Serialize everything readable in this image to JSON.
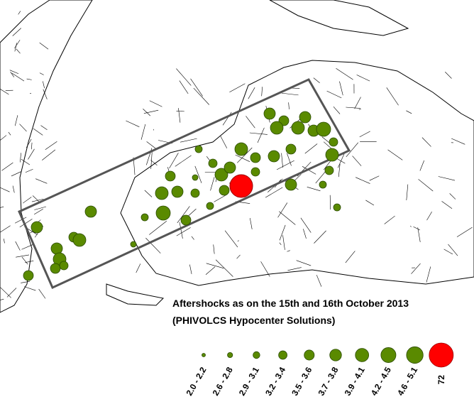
{
  "title": [
    "Aftershocks as on the 15th and 16th October 2013",
    "(PHIVOLCS Hypocenter Solutions)"
  ],
  "legend": {
    "items": [
      {
        "label": "2.0 - 2.2"
      },
      {
        "label": "2.6 - 2.8"
      },
      {
        "label": "2.9 - 3.1"
      },
      {
        "label": "3.2 - 3.4"
      },
      {
        "label": "3.5 - 3.6"
      },
      {
        "label": "3.7 - 3.8"
      },
      {
        "label": "3.9 - 4.1"
      },
      {
        "label": "4.2 - 4.5"
      },
      {
        "label": "4.6 - 5.1"
      },
      {
        "label": "72"
      }
    ]
  }
}
